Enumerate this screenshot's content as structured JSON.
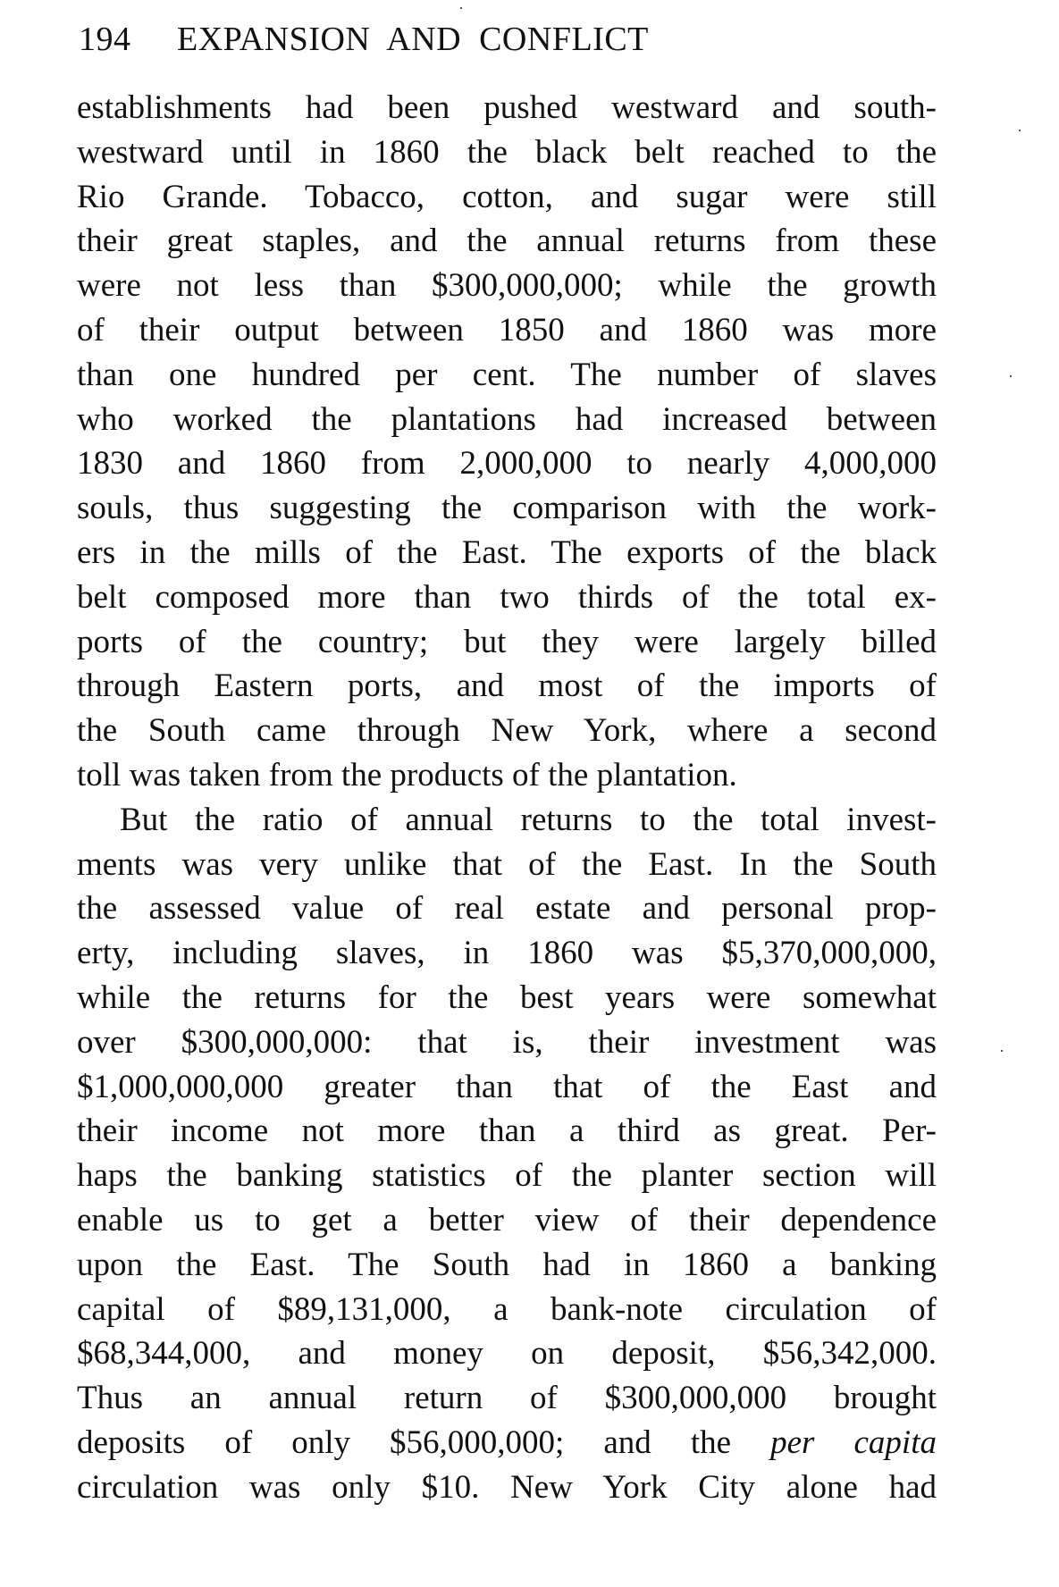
{
  "header": {
    "page_number": "194",
    "running_title": "EXPANSION AND CONFLICT"
  },
  "paragraphs": [
    {
      "lines": [
        "establishments had been pushed westward and south-",
        "westward until in 1860 the black belt reached to the",
        "Rio Grande. Tobacco, cotton, and sugar were still",
        "their great staples, and the annual returns from these",
        "were not less than $300,000,000; while the growth",
        "of their output between 1850 and 1860 was more",
        "than one hundred per cent. The number of slaves",
        "who worked the plantations had increased between",
        "1830 and 1860 from 2,000,000 to nearly 4,000,000",
        "souls, thus suggesting the comparison with the work-",
        "ers in the mills of the East. The exports of the black",
        "belt composed more than two thirds of the total ex-",
        "ports of the country; but they were largely billed",
        "through Eastern ports, and most of the imports of",
        "the South came through New York, where a second",
        "toll was taken from the products of the plantation."
      ]
    },
    {
      "lines": [
        "But the ratio of annual returns to the total invest-",
        "ments was very unlike that of the East. In the South",
        "the assessed value of real estate and personal prop-",
        "erty, including slaves, in 1860 was $5,370,000,000,",
        "while the returns for the best years were somewhat",
        "over $300,000,000: that is, their investment was",
        "$1,000,000,000 greater than that of the East and",
        "their income not more than a third as great. Per-",
        "haps the banking statistics of the planter section will",
        "enable us to get a better view of their dependence",
        "upon the East. The South had in 1860 a banking",
        "capital of $89,131,000, a bank-note circulation of",
        "$68,344,000, and money on deposit, $56,342,000.",
        "Thus an annual return of $300,000,000 brought",
        "deposits of only $56,000,000; and the "
      ],
      "italic_phrase": "per capita",
      "final_line": "circulation was only $10. New York City alone had"
    }
  ]
}
